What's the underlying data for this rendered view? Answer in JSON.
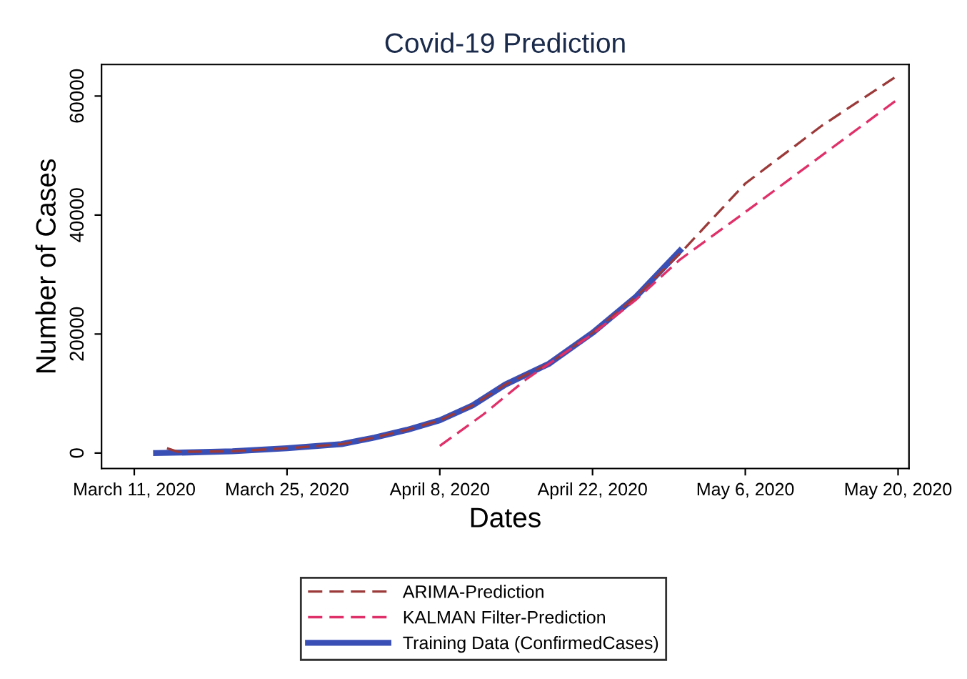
{
  "chart_data": {
    "type": "line",
    "title": "Covid-19 Prediction",
    "xlabel": "Dates",
    "ylabel": "Number of Cases",
    "xlim": [
      "2020-03-08",
      "2020-05-21"
    ],
    "ylim": [
      -2600,
      65300
    ],
    "xticks": [
      {
        "value": "2020-03-11",
        "label": "March 11, 2020"
      },
      {
        "value": "2020-03-25",
        "label": "March 25, 2020"
      },
      {
        "value": "2020-04-08",
        "label": "April 8, 2020"
      },
      {
        "value": "2020-04-22",
        "label": "April 22, 2020"
      },
      {
        "value": "2020-05-06",
        "label": "May 6, 2020"
      },
      {
        "value": "2020-05-20",
        "label": "May 20, 2020"
      }
    ],
    "yticks": [
      0,
      20000,
      40000,
      60000
    ],
    "grid": false,
    "legend": "bottom",
    "series": [
      {
        "name": "ARIMA-Prediction",
        "color": "#9c3a3a",
        "line_style": "dashed",
        "x": [
          "2020-03-14",
          "2020-03-15",
          "2020-03-20",
          "2020-03-25",
          "2020-03-30",
          "2020-04-02",
          "2020-04-05",
          "2020-04-08",
          "2020-04-11",
          "2020-04-14",
          "2020-04-18",
          "2020-04-22",
          "2020-04-26",
          "2020-04-30",
          "2020-05-06",
          "2020-05-13",
          "2020-05-20"
        ],
        "values": [
          800,
          200,
          300,
          800,
          1500,
          2600,
          3900,
          5500,
          8000,
          11500,
          15000,
          20200,
          26300,
          33500,
          45300,
          55000,
          63500
        ]
      },
      {
        "name": "KALMAN Filter-Prediction",
        "color": "#e0306a",
        "line_style": "dashed",
        "x": [
          "2020-04-08",
          "2020-04-12",
          "2020-04-16",
          "2020-04-22",
          "2020-04-26",
          "2020-04-30",
          "2020-05-06",
          "2020-05-13",
          "2020-05-20"
        ],
        "values": [
          1200,
          6500,
          12500,
          20000,
          25800,
          32500,
          40500,
          50000,
          59500
        ]
      },
      {
        "name": "Training Data (ConfirmedCases)",
        "color": "#3a4fb5",
        "line_style": "solid",
        "x": [
          "2020-03-13",
          "2020-03-16",
          "2020-03-20",
          "2020-03-25",
          "2020-03-30",
          "2020-04-02",
          "2020-04-05",
          "2020-04-08",
          "2020-04-11",
          "2020-04-14",
          "2020-04-18",
          "2020-04-22",
          "2020-04-26",
          "2020-04-30"
        ],
        "values": [
          0,
          100,
          300,
          800,
          1500,
          2600,
          3900,
          5500,
          8000,
          11500,
          15000,
          20200,
          26300,
          34000
        ]
      }
    ]
  }
}
